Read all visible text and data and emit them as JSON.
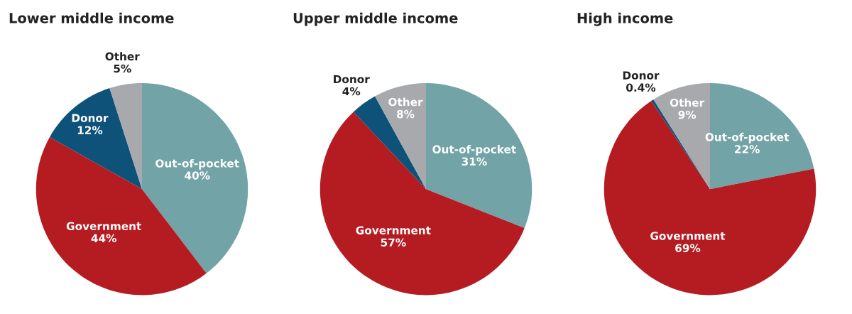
{
  "chart_data": [
    {
      "type": "pie",
      "title": "Lower middle income",
      "categories": [
        "Out-of-pocket",
        "Government",
        "Donor",
        "Other"
      ],
      "values": [
        40,
        44,
        12,
        5
      ],
      "value_labels": [
        "40%",
        "44%",
        "12%",
        "5%"
      ],
      "colors": [
        "#72a3a6",
        "#b51c22",
        "#0e5279",
        "#a7a9ac"
      ]
    },
    {
      "type": "pie",
      "title": "Upper middle income",
      "categories": [
        "Out-of-pocket",
        "Government",
        "Donor",
        "Other"
      ],
      "values": [
        31,
        57,
        4,
        8
      ],
      "value_labels": [
        "31%",
        "57%",
        "4%",
        "8%"
      ],
      "colors": [
        "#72a3a6",
        "#b51c22",
        "#0e5279",
        "#a7a9ac"
      ]
    },
    {
      "type": "pie",
      "title": "High income",
      "categories": [
        "Out-of-pocket",
        "Government",
        "Donor",
        "Other"
      ],
      "values": [
        22,
        69,
        0.4,
        9
      ],
      "value_labels": [
        "22%",
        "69%",
        "0.4%",
        "9%"
      ],
      "colors": [
        "#72a3a6",
        "#b51c22",
        "#0e5279",
        "#a7a9ac"
      ]
    }
  ]
}
